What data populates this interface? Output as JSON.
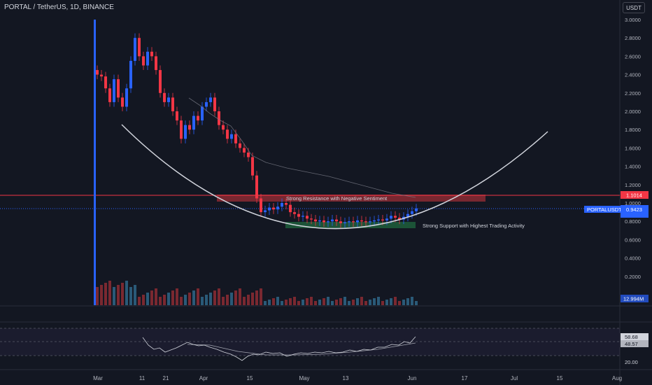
{
  "header": {
    "symbol_title": "PORTAL / TetherUS, 1D, BINANCE",
    "currency_button": "USDT"
  },
  "price_axis": {
    "ticks": [
      "3.0000",
      "2.8000",
      "2.6000",
      "2.4000",
      "2.2000",
      "2.0000",
      "1.8000",
      "1.6000",
      "1.4000",
      "1.2000",
      "1.0000",
      "0.8000",
      "0.6000",
      "0.4000",
      "0.2000"
    ],
    "resistance_label": "1.1014",
    "current_price_label": "0.9423",
    "symbol_label": "PORTALUSDT",
    "volume_label": "12.994M"
  },
  "rsi_axis": {
    "ticks": [
      "20.00"
    ],
    "rsi_value": "58.68",
    "rsi_ma_value": "48.57"
  },
  "time_axis": [
    "Mar",
    "11",
    "21",
    "Apr",
    "15",
    "May",
    "13",
    "Jun",
    "17",
    "Jul",
    "15",
    "Aug"
  ],
  "annotations": {
    "resistance": "Strong Resistance with Negative Sentiment",
    "support": "Strong Support with Highest Trading Activity"
  },
  "colors": {
    "background": "#131722",
    "up": "#2962ff",
    "down": "#f23645",
    "resistance_zone": "#8b2a33",
    "support_zone": "#1e5a3a",
    "curve": "#d1d4dc",
    "rsi_line": "#d1d4dc"
  },
  "chart_data": {
    "type": "candlestick",
    "x": [
      "Mar 1",
      "Mar 11",
      "Mar 21",
      "Apr 1",
      "Apr 15",
      "May 1",
      "May 13",
      "Jun 1"
    ],
    "close_approx": [
      2.4,
      2.55,
      1.9,
      2.1,
      0.95,
      0.82,
      0.78,
      0.94
    ],
    "levels": {
      "resistance": 1.1014,
      "current": 0.9423
    },
    "ylim": [
      0.1,
      3.05
    ],
    "rsi_level": 20.0
  }
}
